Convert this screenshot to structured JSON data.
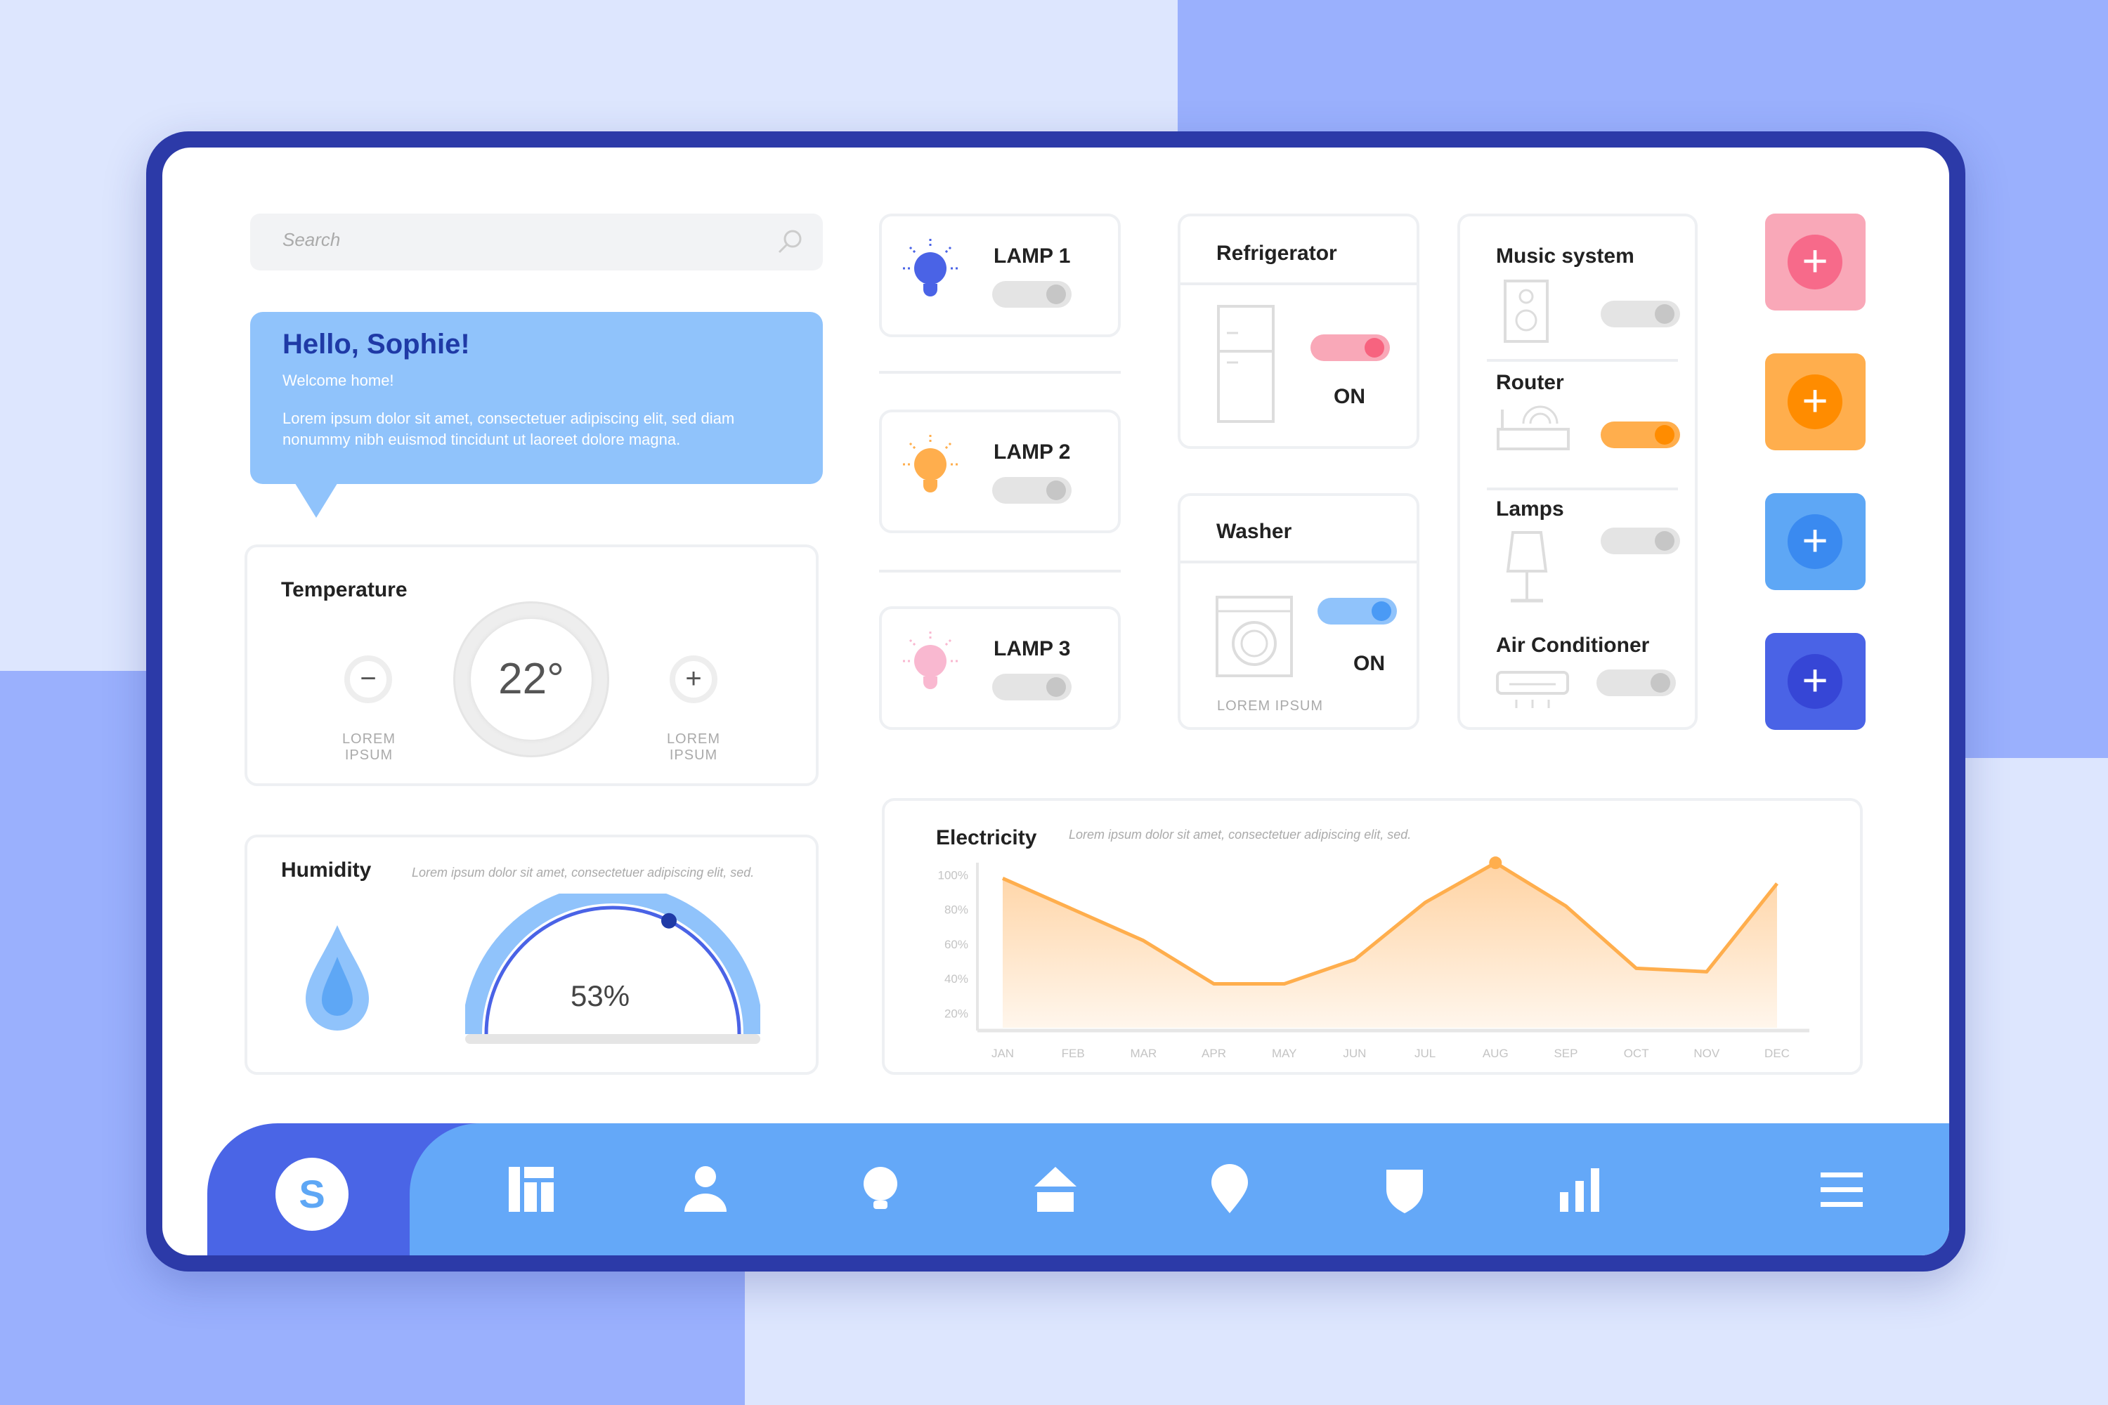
{
  "search": {
    "placeholder": "Search",
    "icon": "search-icon"
  },
  "greeting": {
    "title": "Hello, Sophie!",
    "subtitle": "Welcome home!",
    "body": "Lorem ipsum dolor sit amet, consectetuer adipiscing elit, sed diam nonummy nibh euismod tincidunt ut laoreet dolore magna."
  },
  "temperature": {
    "title": "Temperature",
    "value": "22°",
    "decrease_label": "LOREM IPSUM",
    "increase_label": "LOREM IPSUM"
  },
  "humidity": {
    "title": "Humidity",
    "description": "Lorem ipsum dolor sit amet, consectetuer adipiscing elit, sed.",
    "value": "53%",
    "level": 0.53
  },
  "lamps": [
    {
      "label": "LAMP 1",
      "on": false,
      "color": "#4a63e6"
    },
    {
      "label": "LAMP 2",
      "on": false,
      "color": "#ffae4d"
    },
    {
      "label": "LAMP 3",
      "on": false,
      "color": "#f9b8d0"
    }
  ],
  "refrigerator": {
    "title": "Refrigerator",
    "state": "ON",
    "on": true,
    "color": "#f7637f"
  },
  "washer": {
    "title": "Washer",
    "state": "ON",
    "on": true,
    "caption": "LOREM IPSUM",
    "color": "#4a9af5"
  },
  "devices": [
    {
      "title": "Music system",
      "on": false
    },
    {
      "title": "Router",
      "on": true,
      "color": "#ff8c00"
    },
    {
      "title": "Lamps",
      "on": false
    },
    {
      "title": "Air Conditioner",
      "on": false
    }
  ],
  "add_buttons": [
    {
      "bg": "#f9a8b8",
      "fg": "#f76a8a"
    },
    {
      "bg": "#ffae4d",
      "fg": "#ff8c00"
    },
    {
      "bg": "#5ea7f5",
      "fg": "#3a8af0"
    },
    {
      "bg": "#4a63e6",
      "fg": "#3646d6"
    }
  ],
  "plus_symbol": "+",
  "minus_symbol": "−",
  "chart_data": {
    "type": "area",
    "title": "Electricity",
    "subtitle": "Lorem ipsum dolor sit amet, consectetuer adipiscing elit, sed.",
    "categories": [
      "JAN",
      "FEB",
      "MAR",
      "APR",
      "MAY",
      "JUN",
      "JUL",
      "AUG",
      "SEP",
      "OCT",
      "NOV",
      "DEC"
    ],
    "values": [
      98,
      80,
      62,
      37,
      37,
      51,
      84,
      107,
      82,
      46,
      44,
      95
    ],
    "yticks": [
      "100%",
      "80%",
      "60%",
      "40%",
      "20%"
    ],
    "ytick_values": [
      100,
      80,
      60,
      40,
      20
    ],
    "ylim": [
      10,
      110
    ],
    "highlight": "AUG",
    "color": "#ffae4d",
    "grid": false
  },
  "nav": {
    "avatar_letter": "S",
    "items": [
      "dashboard-icon",
      "user-icon",
      "bulb-icon",
      "home-icon",
      "location-icon",
      "shield-icon",
      "stats-icon",
      "menu-icon"
    ]
  }
}
